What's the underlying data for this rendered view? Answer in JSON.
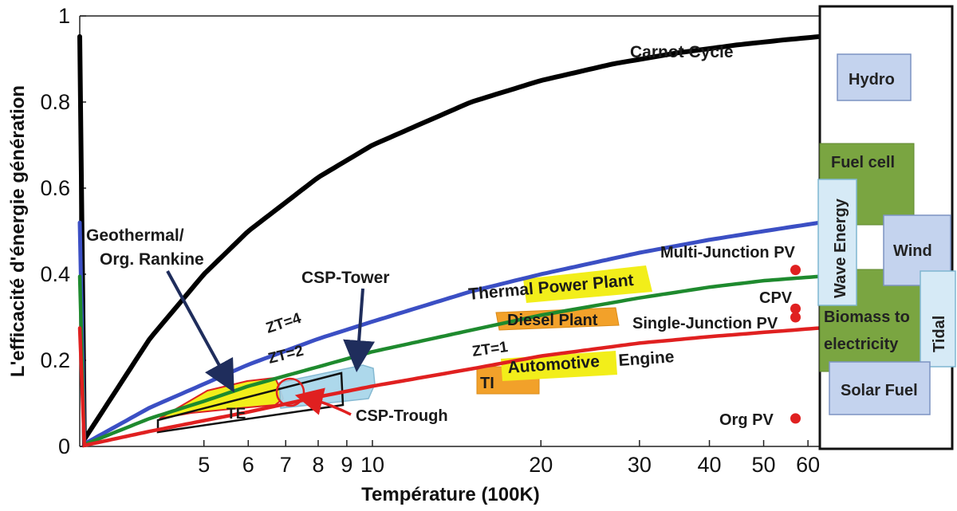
{
  "chart_data": {
    "type": "line",
    "title": "",
    "xlabel": "Température (100K)",
    "ylabel": "L'efficacité d'énergie génération",
    "x_scale": "log",
    "xlim": [
      3,
      63
    ],
    "ylim": [
      0,
      1
    ],
    "x_ticks": [
      5,
      6,
      7,
      8,
      9,
      10,
      20,
      30,
      40,
      50,
      60
    ],
    "x_tick_labels": [
      "5",
      "6",
      "7",
      "8",
      "9",
      "10",
      "20",
      "30",
      "40",
      "50",
      "60"
    ],
    "y_ticks": [
      0,
      0.2,
      0.4,
      0.6,
      0.8,
      1
    ],
    "y_tick_labels": [
      "0",
      "0.2",
      "0.4",
      "0.6",
      "0.8",
      "1"
    ],
    "grid": false,
    "series": [
      {
        "name": "Carnot Cycle",
        "color": "#000000",
        "x": [
          3,
          4,
          5,
          6,
          8,
          10,
          15,
          20,
          27,
          35,
          45,
          55,
          63
        ],
        "y": [
          0.0,
          0.25,
          0.4,
          0.5,
          0.625,
          0.7,
          0.8,
          0.85,
          0.889,
          0.914,
          0.933,
          0.945,
          0.952
        ]
      },
      {
        "name": "ZT=4",
        "color": "#3b4fc4",
        "x": [
          3,
          4,
          5,
          6,
          8,
          10,
          15,
          20,
          30,
          40,
          50,
          63
        ],
        "y": [
          0.0,
          0.09,
          0.145,
          0.19,
          0.25,
          0.29,
          0.36,
          0.4,
          0.45,
          0.48,
          0.5,
          0.52
        ]
      },
      {
        "name": "ZT=2",
        "color": "#1e8a2e",
        "x": [
          3,
          4,
          5,
          6,
          8,
          10,
          15,
          20,
          30,
          40,
          50,
          63
        ],
        "y": [
          0.0,
          0.065,
          0.105,
          0.14,
          0.185,
          0.22,
          0.27,
          0.305,
          0.345,
          0.37,
          0.385,
          0.395
        ]
      },
      {
        "name": "ZT=1",
        "color": "#e02020",
        "x": [
          3,
          4,
          5,
          6,
          8,
          10,
          15,
          20,
          30,
          40,
          50,
          63
        ],
        "y": [
          0.0,
          0.035,
          0.06,
          0.08,
          0.115,
          0.14,
          0.18,
          0.21,
          0.24,
          0.255,
          0.265,
          0.275
        ]
      }
    ],
    "points": [
      {
        "label": "Multi-Junction PV",
        "x": 57,
        "y": 0.41
      },
      {
        "label": "CPV",
        "x": 57,
        "y": 0.32
      },
      {
        "label": "Single-Junction PV",
        "x": 57,
        "y": 0.3
      },
      {
        "label": "Org PV",
        "x": 57,
        "y": 0.065
      }
    ],
    "annotations": [
      "Carnot Cycle",
      "ZT=4",
      "ZT=2",
      "ZT=1",
      "Geothermal/",
      "Org. Rankine",
      "CSP-Tower",
      "CSP-Trough",
      "TE",
      "TI",
      "Thermal Power Plant",
      "Diesel Plant",
      "Automotive",
      "Engine",
      "Multi-Junction PV",
      "CPV",
      "Single-Junction PV",
      "Org PV"
    ],
    "side_panel": [
      "Hydro",
      "Fuel cell",
      "Wave Energy",
      "Wind",
      "Biomass to",
      "electricity",
      "Tidal",
      "Solar Fuel"
    ],
    "colors": {
      "carnot": "#000000",
      "zt4": "#3b4fc4",
      "zt2": "#1e8a2e",
      "zt1": "#e02020",
      "highlight_yellow": "#f2ee1a",
      "orange": "#f2a12a",
      "side_green": "#7aa541",
      "side_blue": "#c4d3ee",
      "csp_blue": "#a9d6ea",
      "point_red": "#e02020"
    }
  }
}
